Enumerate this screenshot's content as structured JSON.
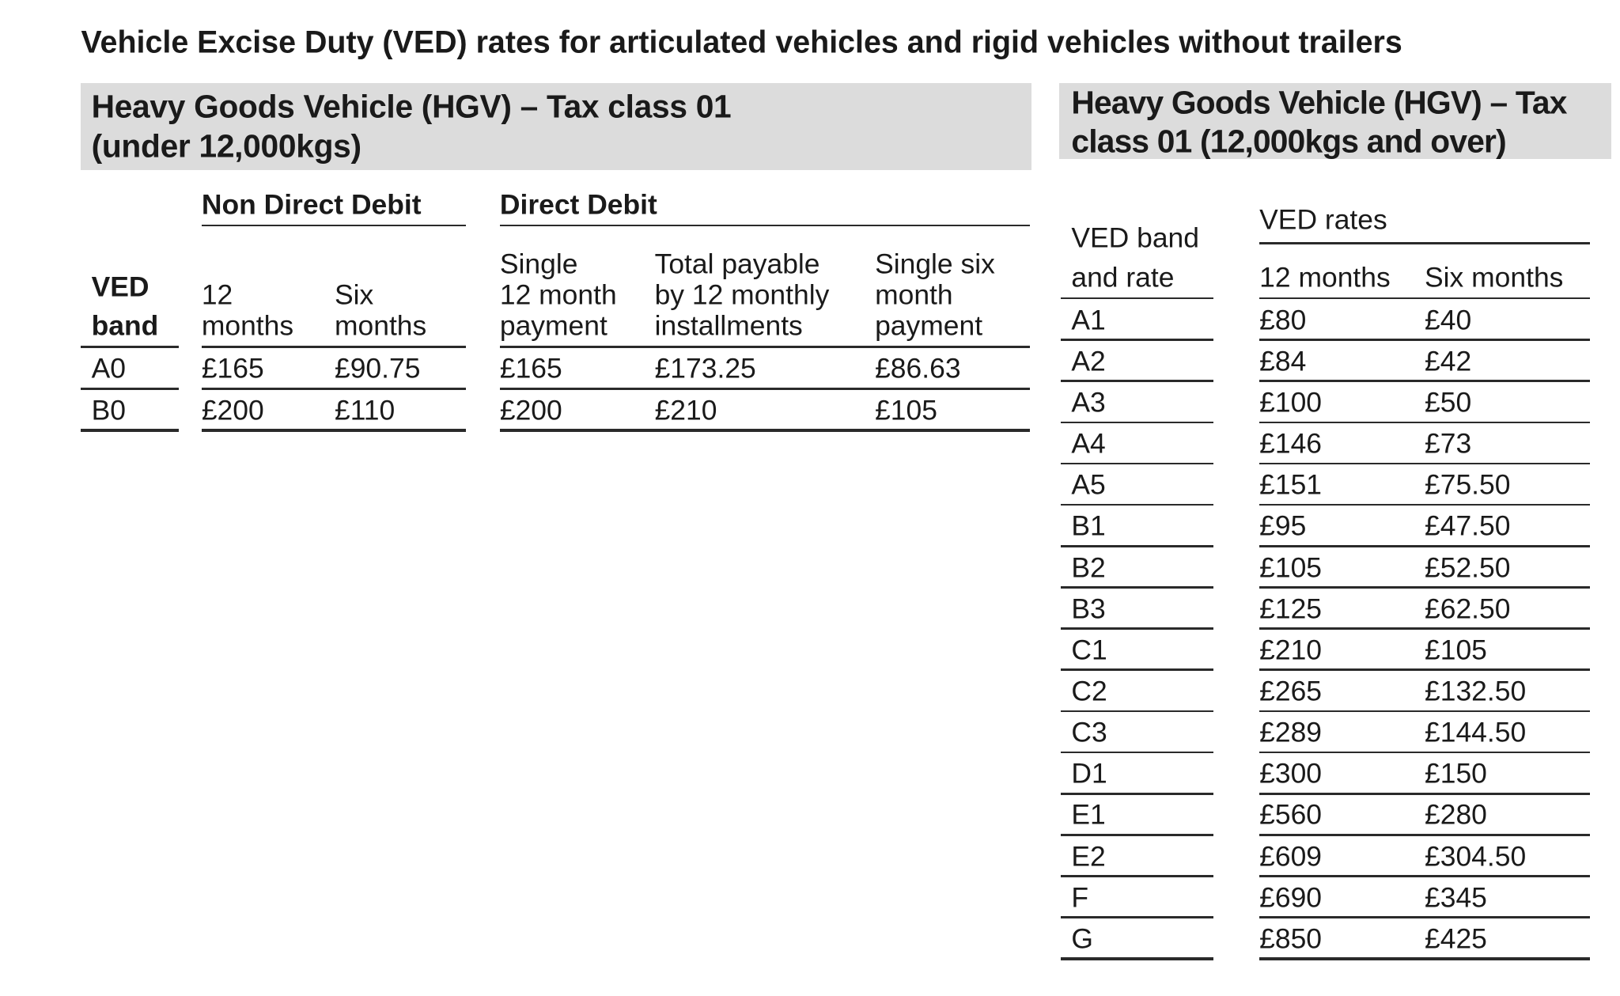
{
  "title": "Vehicle Excise Duty (VED) rates for articulated vehicles and rigid vehicles without trailers",
  "left_table": {
    "heading": [
      "Heavy Goods Vehicle (HGV) – Tax class 01",
      "(under 12,000kgs)"
    ],
    "groups": [
      "Non Direct Debit",
      "Direct Debit"
    ],
    "columns": [
      [
        "VED",
        "band"
      ],
      [
        "12",
        "months"
      ],
      [
        "Six",
        "months"
      ],
      [
        "Single",
        "12 month",
        "payment"
      ],
      [
        "Total payable",
        "by 12 monthly",
        "installments"
      ],
      [
        "Single six",
        "month",
        "payment"
      ]
    ],
    "rows": [
      [
        "A0",
        "£165",
        "£90.75",
        "£165",
        "£173.25",
        "£86.63"
      ],
      [
        "B0",
        "£200",
        "£110",
        "£200",
        "£210",
        "£105"
      ]
    ]
  },
  "right_table": {
    "heading": [
      "Heavy Goods Vehicle (HGV) – Tax",
      "class 01 (12,000kgs and over)"
    ],
    "group": "VED rates",
    "columns": [
      [
        "VED band",
        "and rate"
      ],
      [
        "12 months"
      ],
      [
        "Six months"
      ]
    ],
    "rows": [
      [
        "A1",
        "£80",
        "£40"
      ],
      [
        "A2",
        "£84",
        "£42"
      ],
      [
        "A3",
        "£100",
        "£50"
      ],
      [
        "A4",
        "£146",
        "£73"
      ],
      [
        "A5",
        "£151",
        "£75.50"
      ],
      [
        "B1",
        "£95",
        "£47.50"
      ],
      [
        "B2",
        "£105",
        "£52.50"
      ],
      [
        "B3",
        "£125",
        "£62.50"
      ],
      [
        "C1",
        "£210",
        "£105"
      ],
      [
        "C2",
        "£265",
        "£132.50"
      ],
      [
        "C3",
        "£289",
        "£144.50"
      ],
      [
        "D1",
        "£300",
        "£150"
      ],
      [
        "E1",
        "£560",
        "£280"
      ],
      [
        "E2",
        "£609",
        "£304.50"
      ],
      [
        "F",
        "£690",
        "£345"
      ],
      [
        "G",
        "£850",
        "£425"
      ]
    ]
  }
}
